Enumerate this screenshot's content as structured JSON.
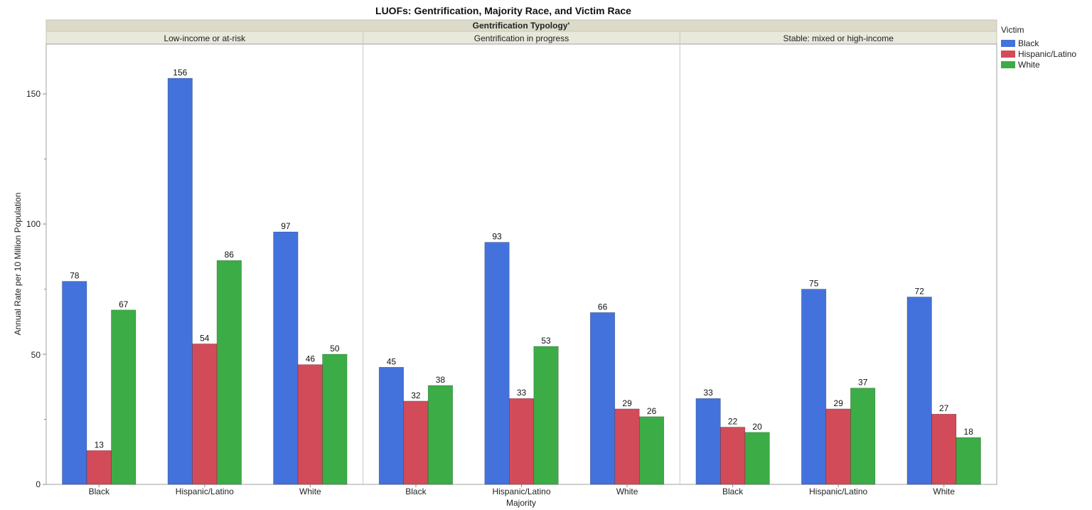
{
  "chart_data": {
    "type": "bar",
    "title": "LUOFs: Gentrification, Majority Race, and Victim Race",
    "facet_title": "Gentrification Typology'",
    "facets": [
      "Low-income or at-risk",
      "Gentrification in progress",
      "Stable: mixed or high-income"
    ],
    "categories": [
      "Black",
      "Hispanic/Latino",
      "White"
    ],
    "xlabel": "Majority",
    "ylabel": "Annual Rate per 10 Million Population",
    "ylim": [
      0,
      170
    ],
    "yticks": [
      0,
      50,
      100,
      150
    ],
    "grid": false,
    "legend_title": "Victim",
    "legend_position": "right",
    "series": [
      {
        "name": "Black",
        "color": "#4472DC",
        "values": [
          [
            78,
            156,
            97
          ],
          [
            45,
            93,
            66
          ],
          [
            33,
            75,
            72
          ]
        ]
      },
      {
        "name": "Hispanic/Latino",
        "color": "#D24B59",
        "values": [
          [
            13,
            54,
            46
          ],
          [
            32,
            33,
            29
          ],
          [
            22,
            29,
            27
          ]
        ]
      },
      {
        "name": "White",
        "color": "#3CAC46",
        "values": [
          [
            67,
            86,
            50
          ],
          [
            38,
            53,
            26
          ],
          [
            20,
            37,
            18
          ]
        ]
      }
    ],
    "data_labels": [
      [
        [
          "78",
          "156",
          "97"
        ],
        [
          "45",
          "93",
          "66"
        ],
        [
          "33",
          "75",
          "72"
        ]
      ],
      [
        [
          "13",
          "54",
          "46"
        ],
        [
          "32",
          "33",
          "29"
        ],
        [
          "22",
          "29",
          "27"
        ]
      ],
      [
        [
          "67",
          "86",
          "50"
        ],
        [
          "38",
          "53",
          "26"
        ],
        [
          "20",
          "37",
          "18"
        ]
      ]
    ]
  }
}
